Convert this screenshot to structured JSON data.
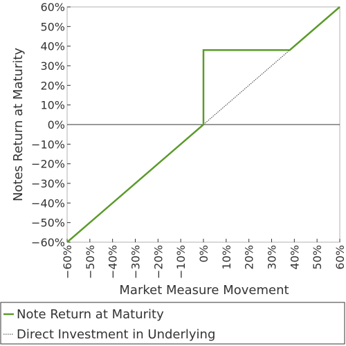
{
  "chart_data": {
    "type": "line",
    "xlabel": "Market Measure Movement",
    "ylabel": "Notes Return at Maturity",
    "xlim": [
      -60,
      60
    ],
    "ylim": [
      -60,
      60
    ],
    "x_ticks": [
      "−60%",
      "−50%",
      "−40%",
      "−30%",
      "−20%",
      "−10%",
      "0%",
      "10%",
      "20%",
      "30%",
      "40%",
      "50%",
      "60%"
    ],
    "y_ticks": [
      "60%",
      "50%",
      "40%",
      "30%",
      "20%",
      "10%",
      "0%",
      "−10%",
      "−20%",
      "−30%",
      "−40%",
      "−50%",
      "−60%"
    ],
    "x_tick_values": [
      -60,
      -50,
      -40,
      -30,
      -20,
      -10,
      0,
      10,
      20,
      30,
      40,
      50,
      60
    ],
    "y_tick_values": [
      60,
      50,
      40,
      30,
      20,
      10,
      0,
      -10,
      -20,
      -30,
      -40,
      -50,
      -60
    ],
    "grid": false,
    "legend_position": "bottom",
    "series": [
      {
        "name": "Note Return at Maturity",
        "color": "#5b9a2a",
        "style": "solid",
        "x": [
          -60,
          0,
          0,
          38,
          60
        ],
        "y": [
          -60,
          0,
          38,
          38,
          60
        ]
      },
      {
        "name": "Direct Investment in Underlying",
        "color": "#333333",
        "style": "dotted",
        "x": [
          0,
          60
        ],
        "y": [
          0,
          60
        ]
      }
    ]
  }
}
